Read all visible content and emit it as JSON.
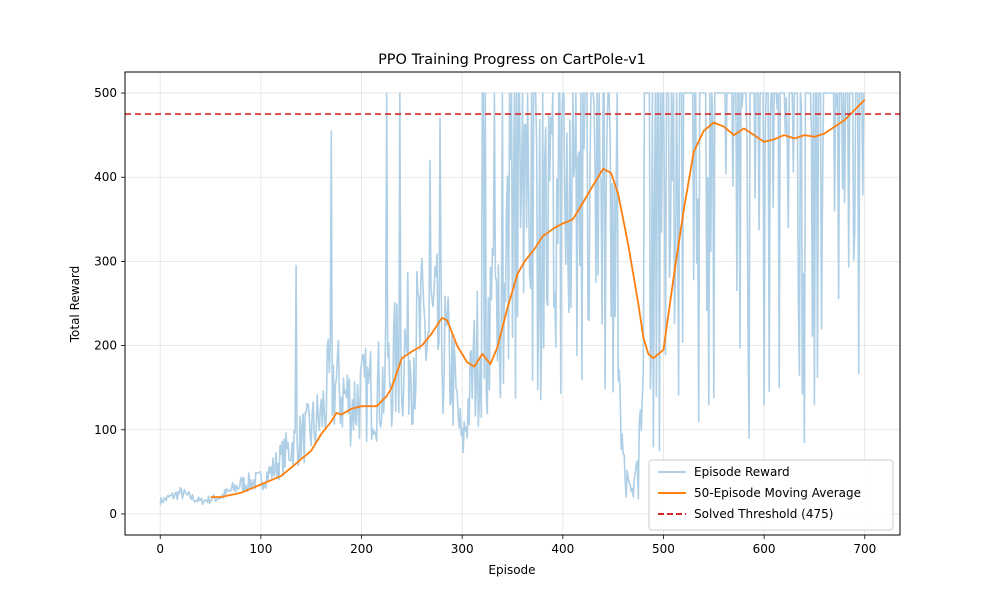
{
  "chart_data": {
    "type": "line",
    "title": "PPO Training Progress on CartPole-v1",
    "xlabel": "Episode",
    "ylabel": "Total Reward",
    "xlim": [
      -35,
      735
    ],
    "ylim": [
      -25,
      525
    ],
    "xticks": [
      0,
      100,
      200,
      300,
      400,
      500,
      600,
      700
    ],
    "yticks": [
      0,
      100,
      200,
      300,
      400,
      500
    ],
    "grid": true,
    "legend_position": "lower right",
    "threshold": {
      "name": "Solved Threshold (475)",
      "value": 475,
      "color": "#d62728",
      "style": "dashed"
    },
    "series": [
      {
        "name": "Episode Reward",
        "color": "#aecfe5",
        "kind": "raw",
        "anchors": [
          [
            0,
            15
          ],
          [
            20,
            25
          ],
          [
            40,
            15
          ],
          [
            60,
            20
          ],
          [
            80,
            35
          ],
          [
            100,
            40
          ],
          [
            110,
            50
          ],
          [
            130,
            80
          ],
          [
            150,
            100
          ],
          [
            160,
            115
          ],
          [
            170,
            160
          ],
          [
            190,
            130
          ],
          [
            200,
            140
          ],
          [
            220,
            150
          ],
          [
            240,
            190
          ],
          [
            260,
            210
          ],
          [
            270,
            220
          ],
          [
            280,
            200
          ],
          [
            290,
            170
          ],
          [
            300,
            80
          ],
          [
            310,
            160
          ],
          [
            320,
            220
          ],
          [
            340,
            270
          ],
          [
            360,
            300
          ],
          [
            380,
            320
          ],
          [
            400,
            340
          ],
          [
            420,
            370
          ],
          [
            440,
            380
          ],
          [
            450,
            360
          ],
          [
            460,
            60
          ],
          [
            470,
            30
          ],
          [
            480,
            120
          ],
          [
            490,
            280
          ],
          [
            500,
            300
          ],
          [
            510,
            380
          ],
          [
            530,
            430
          ],
          [
            560,
            440
          ],
          [
            600,
            430
          ],
          [
            630,
            440
          ],
          [
            660,
            470
          ],
          [
            700,
            495
          ]
        ],
        "spikes": [
          [
            135,
            295
          ],
          [
            170,
            455
          ],
          [
            225,
            500
          ],
          [
            238,
            500
          ],
          [
            268,
            420
          ],
          [
            278,
            470
          ],
          [
            320,
            500
          ],
          [
            340,
            500
          ],
          [
            360,
            500
          ],
          [
            380,
            500
          ],
          [
            400,
            500
          ],
          [
            410,
            500
          ],
          [
            420,
            500
          ],
          [
            430,
            500
          ],
          [
            440,
            500
          ],
          [
            445,
            500
          ],
          [
            485,
            500
          ],
          [
            495,
            500
          ],
          [
            500,
            500
          ],
          [
            520,
            500
          ],
          [
            540,
            500
          ],
          [
            560,
            500
          ],
          [
            580,
            500
          ],
          [
            600,
            500
          ],
          [
            620,
            500
          ],
          [
            640,
            500
          ],
          [
            650,
            500
          ],
          [
            680,
            500
          ],
          [
            700,
            500
          ]
        ],
        "dips": [
          [
            463,
            20
          ],
          [
            470,
            20
          ],
          [
            475,
            18
          ],
          [
            490,
            80
          ],
          [
            496,
            75
          ],
          [
            535,
            110
          ],
          [
            545,
            130
          ],
          [
            585,
            90
          ],
          [
            600,
            130
          ],
          [
            615,
            150
          ],
          [
            635,
            165
          ],
          [
            640,
            85
          ],
          [
            650,
            130
          ],
          [
            680,
            370
          ]
        ]
      },
      {
        "name": "50-Episode Moving Average",
        "color": "#ff7f0e",
        "kind": "average",
        "points": [
          [
            50,
            20
          ],
          [
            60,
            20
          ],
          [
            80,
            25
          ],
          [
            100,
            35
          ],
          [
            110,
            40
          ],
          [
            120,
            45
          ],
          [
            130,
            55
          ],
          [
            140,
            65
          ],
          [
            150,
            75
          ],
          [
            160,
            95
          ],
          [
            170,
            110
          ],
          [
            175,
            120
          ],
          [
            180,
            118
          ],
          [
            190,
            125
          ],
          [
            200,
            128
          ],
          [
            215,
            128
          ],
          [
            225,
            140
          ],
          [
            230,
            150
          ],
          [
            240,
            185
          ],
          [
            250,
            193
          ],
          [
            260,
            200
          ],
          [
            270,
            215
          ],
          [
            280,
            233
          ],
          [
            285,
            230
          ],
          [
            295,
            200
          ],
          [
            305,
            180
          ],
          [
            312,
            175
          ],
          [
            320,
            190
          ],
          [
            328,
            178
          ],
          [
            335,
            198
          ],
          [
            345,
            245
          ],
          [
            355,
            285
          ],
          [
            362,
            300
          ],
          [
            372,
            315
          ],
          [
            380,
            330
          ],
          [
            392,
            340
          ],
          [
            400,
            345
          ],
          [
            410,
            350
          ],
          [
            420,
            370
          ],
          [
            430,
            390
          ],
          [
            440,
            410
          ],
          [
            448,
            405
          ],
          [
            455,
            380
          ],
          [
            465,
            320
          ],
          [
            475,
            250
          ],
          [
            480,
            210
          ],
          [
            485,
            190
          ],
          [
            490,
            185
          ],
          [
            500,
            195
          ],
          [
            510,
            280
          ],
          [
            520,
            360
          ],
          [
            530,
            430
          ],
          [
            540,
            455
          ],
          [
            550,
            465
          ],
          [
            560,
            460
          ],
          [
            570,
            450
          ],
          [
            580,
            458
          ],
          [
            590,
            450
          ],
          [
            600,
            442
          ],
          [
            610,
            445
          ],
          [
            620,
            450
          ],
          [
            630,
            446
          ],
          [
            640,
            450
          ],
          [
            650,
            448
          ],
          [
            660,
            452
          ],
          [
            670,
            460
          ],
          [
            680,
            468
          ],
          [
            690,
            480
          ],
          [
            700,
            492
          ]
        ]
      }
    ]
  }
}
